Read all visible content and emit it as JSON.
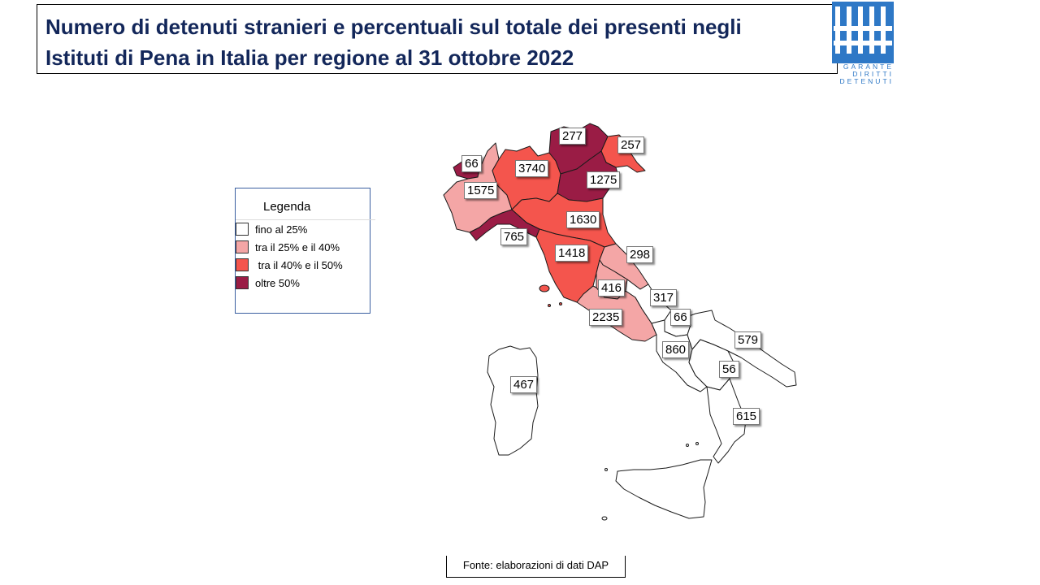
{
  "title": {
    "line1": "Numero di detenuti stranieri e percentuali sul totale dei presenti negli",
    "line2": "Istituti di Pena in Italia  per regione al 31 ottobre 2022"
  },
  "logo": {
    "text_line1": "GARANTE",
    "text_line2": "DIRITTI",
    "text_line3": "DETENUTI",
    "color": "#2e78c6"
  },
  "legend": {
    "title": "Legenda",
    "items": [
      {
        "label": "fino al 25%",
        "color": "#ffffff"
      },
      {
        "label": "tra il 25% e il 40%",
        "color": "#f4a6a6"
      },
      {
        "label": " tra il 40% e il 50%",
        "color": "#f4554d"
      },
      {
        "label": "oltre 50%",
        "color": "#9a1c45"
      }
    ]
  },
  "map": {
    "regions": [
      {
        "name": "Valle d'Aosta",
        "value": "66",
        "class": "oltre 50%"
      },
      {
        "name": "Piemonte",
        "value": "1575",
        "class": "tra il 25% e il 40%"
      },
      {
        "name": "Lombardia",
        "value": "3740",
        "class": "tra il 40% e il 50%"
      },
      {
        "name": "Trentino-Alto Adige",
        "value": "277",
        "class": "oltre 50%"
      },
      {
        "name": "Friuli-Venezia Giulia",
        "value": "257",
        "class": "tra il 40% e il 50%"
      },
      {
        "name": "Veneto",
        "value": "1275",
        "class": "oltre 50%"
      },
      {
        "name": "Emilia-Romagna",
        "value": "1630",
        "class": "tra il 40% e il 50%"
      },
      {
        "name": "Liguria",
        "value": "765",
        "class": "oltre 50%"
      },
      {
        "name": "Toscana",
        "value": "1418",
        "class": "tra il 40% e il 50%"
      },
      {
        "name": "Marche",
        "value": "298",
        "class": "tra il 25% e il 40%"
      },
      {
        "name": "Umbria",
        "value": "416",
        "class": "tra il 25% e il 40%"
      },
      {
        "name": "Lazio",
        "value": "2235",
        "class": "tra il 25% e il 40%"
      },
      {
        "name": "Abruzzo",
        "value": "317",
        "class": "fino al 25%"
      },
      {
        "name": "Molise",
        "value": "66",
        "class": "fino al 25%"
      },
      {
        "name": "Campania",
        "value": "860",
        "class": "fino al 25%"
      },
      {
        "name": "Puglia",
        "value": "579",
        "class": "fino al 25%"
      },
      {
        "name": "Basilicata",
        "value": "56",
        "class": "fino al 25%"
      },
      {
        "name": "Calabria",
        "value": "615",
        "class": "fino al 25%"
      },
      {
        "name": "Sardegna",
        "value": "467",
        "class": "fino al 25%"
      },
      {
        "name": "Sicilia",
        "value": "",
        "class": "fino al 25%"
      }
    ]
  },
  "source": "Fonte: elaborazioni di dati DAP"
}
